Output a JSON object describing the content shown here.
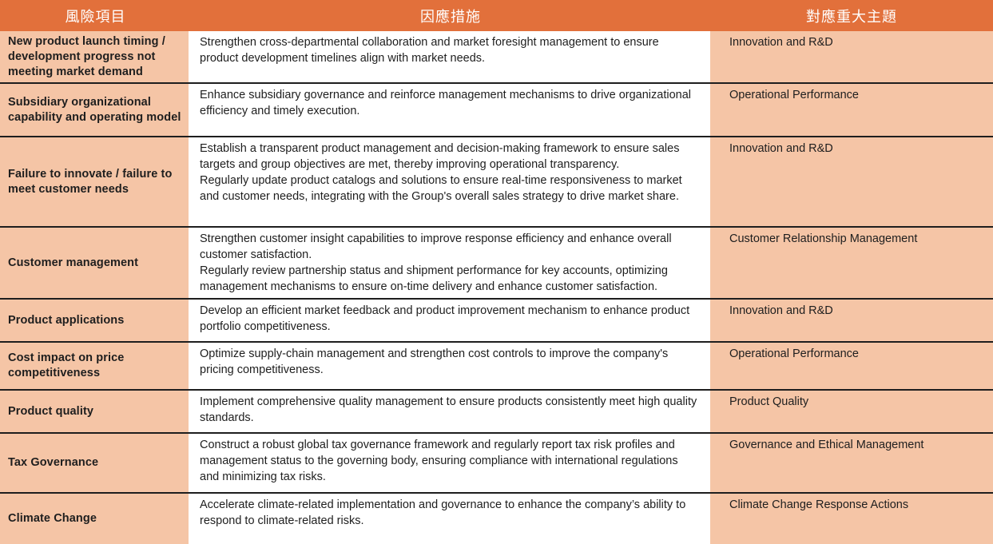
{
  "colors": {
    "header_background": "#E2703B",
    "header_text": "#FFFFFF",
    "risk_and_topic_cell_background": "#F5C5A6",
    "measure_cell_background": "#FFFFFF",
    "row_divider": "#1E1E1E",
    "body_text": "#1E1E1E"
  },
  "table": {
    "headers": [
      {
        "label": "風險項目"
      },
      {
        "label": "因應措施"
      },
      {
        "label": "對應重大主題"
      }
    ],
    "rows": [
      {
        "risk": "New product launch timing / development progress not meeting market demand",
        "measure": "Strengthen cross-departmental collaboration and market foresight management to ensure product development timelines align with market needs.",
        "topic": "Innovation and R&D"
      },
      {
        "risk": "Subsidiary organizational capability and operating model",
        "measure": "Enhance subsidiary governance and reinforce management mechanisms to drive organizational efficiency and timely execution.",
        "topic": "Operational Performance"
      },
      {
        "risk": "Failure to innovate / failure to meet customer needs",
        "measure": "Establish a transparent product management and decision-making framework to ensure sales targets and group objectives are met, thereby improving operational transparency.\nRegularly update product catalogs and solutions to ensure real-time responsiveness to market and customer needs, integrating with the Group's overall sales strategy to drive market share.",
        "topic": "Innovation and R&D"
      },
      {
        "risk": "Customer management",
        "measure": "Strengthen customer insight capabilities to improve response efficiency and enhance overall customer satisfaction.\nRegularly review partnership status and shipment performance for key accounts, optimizing management mechanisms to ensure on-time delivery and enhance customer satisfaction.",
        "topic": "Customer Relationship Management"
      },
      {
        "risk": "Product applications",
        "measure": "Develop an efficient market feedback and product improvement mechanism to enhance product portfolio competitiveness.",
        "topic": "Innovation and R&D"
      },
      {
        "risk": "Cost impact on price competitiveness",
        "measure": "Optimize supply-chain management and strengthen cost controls to improve the company's pricing competitiveness.",
        "topic": "Operational Performance"
      },
      {
        "risk": "Product quality",
        "measure": "Implement comprehensive quality management to ensure products consistently meet high quality standards.",
        "topic": "Product Quality"
      },
      {
        "risk": "Tax Governance",
        "measure": "Construct a robust global tax governance framework and regularly report tax risk profiles and management status to the governing body, ensuring compliance with international regulations and minimizing tax risks.",
        "topic": "Governance and Ethical Management"
      },
      {
        "risk": "Climate Change",
        "measure": "Accelerate climate-related implementation and governance to enhance the company’s ability to respond to climate-related risks.",
        "topic": "Climate Change Response Actions"
      }
    ]
  }
}
